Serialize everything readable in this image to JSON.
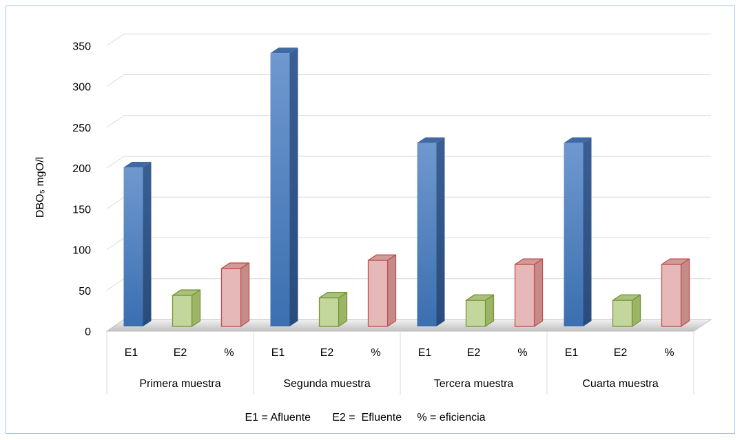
{
  "chart_data": {
    "type": "bar",
    "three_d": true,
    "title": "",
    "ylabel": "DBO₅ mgO/l",
    "xlabel": "",
    "ylim": [
      0,
      350
    ],
    "yticks": [
      0,
      50,
      100,
      150,
      200,
      250,
      300,
      350
    ],
    "grid": true,
    "groups": [
      "Primera muestra",
      "Segunda muestra",
      "Tercera muestra",
      "Cuarta muestra"
    ],
    "subcategories": [
      "E1",
      "E2",
      "%"
    ],
    "values": [
      [
        200,
        43,
        76
      ],
      [
        340,
        40,
        86
      ],
      [
        230,
        37,
        81
      ],
      [
        230,
        37,
        81
      ]
    ],
    "colors": {
      "E1": "#4f81bd",
      "E2": "#c3d69b",
      "%": "#e6b9b8"
    },
    "legend_text": "E1 = Afluente       E2 =  Efluente     % = eficiencia"
  }
}
